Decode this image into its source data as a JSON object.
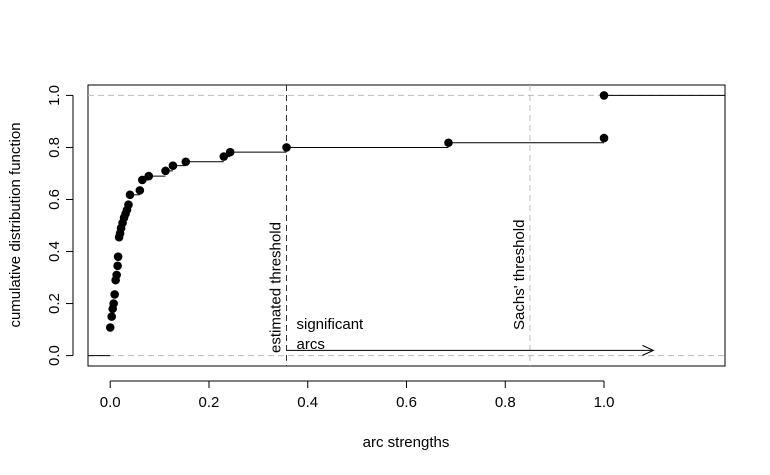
{
  "chart_data": {
    "type": "step",
    "title": "",
    "xlabel": "arc strengths",
    "ylabel": "cumulative distribution function",
    "xlim": [
      -0.045,
      1.245
    ],
    "ylim": [
      -0.04,
      1.04
    ],
    "x_ticks": [
      0,
      0.2,
      0.4,
      0.6,
      0.8,
      1
    ],
    "x_tick_labels": [
      "0.0",
      "0.2",
      "0.4",
      "0.6",
      "0.8",
      "1.0"
    ],
    "y_ticks": [
      0,
      0.2,
      0.4,
      0.6,
      0.8,
      1
    ],
    "y_tick_labels": [
      "0.0",
      "0.2",
      "0.4",
      "0.6",
      "0.8",
      "1.0"
    ],
    "grid": false,
    "legend": "none",
    "ecdf_points": [
      {
        "x": 0.0,
        "y": 0.108
      },
      {
        "x": 0.003,
        "y": 0.15
      },
      {
        "x": 0.005,
        "y": 0.18
      },
      {
        "x": 0.007,
        "y": 0.2
      },
      {
        "x": 0.009,
        "y": 0.235
      },
      {
        "x": 0.011,
        "y": 0.29
      },
      {
        "x": 0.013,
        "y": 0.31
      },
      {
        "x": 0.015,
        "y": 0.345
      },
      {
        "x": 0.016,
        "y": 0.38
      },
      {
        "x": 0.018,
        "y": 0.455
      },
      {
        "x": 0.02,
        "y": 0.47
      },
      {
        "x": 0.022,
        "y": 0.49
      },
      {
        "x": 0.025,
        "y": 0.51
      },
      {
        "x": 0.028,
        "y": 0.53
      },
      {
        "x": 0.031,
        "y": 0.545
      },
      {
        "x": 0.034,
        "y": 0.56
      },
      {
        "x": 0.037,
        "y": 0.58
      },
      {
        "x": 0.04,
        "y": 0.618
      },
      {
        "x": 0.06,
        "y": 0.635
      },
      {
        "x": 0.065,
        "y": 0.675
      },
      {
        "x": 0.078,
        "y": 0.69
      },
      {
        "x": 0.112,
        "y": 0.71
      },
      {
        "x": 0.127,
        "y": 0.73
      },
      {
        "x": 0.153,
        "y": 0.745
      },
      {
        "x": 0.23,
        "y": 0.765
      },
      {
        "x": 0.243,
        "y": 0.782
      },
      {
        "x": 0.357,
        "y": 0.8
      },
      {
        "x": 0.685,
        "y": 0.818
      },
      {
        "x": 1.0,
        "y": 0.836
      },
      {
        "x": 1.0,
        "y": 1.0
      }
    ],
    "reference_lines": {
      "horizontal_dashed": [
        0,
        1
      ],
      "estimated_threshold": {
        "x": 0.357,
        "label": "estimated threshold",
        "color": "#333333"
      },
      "sachs_threshold": {
        "x": 0.85,
        "label": "Sachs' threshold",
        "color": "#bbbbbb"
      }
    },
    "annotation": {
      "text_line1": "significant",
      "text_line2": "arcs",
      "arrow_from_x": 0.357,
      "arrow_to_x": 1.1,
      "arrow_y": 0.02
    },
    "colors": {
      "points": "#000000",
      "step_line": "#000000",
      "ref_dashed": "#bbbbbb",
      "estimated_line": "#333333"
    }
  }
}
